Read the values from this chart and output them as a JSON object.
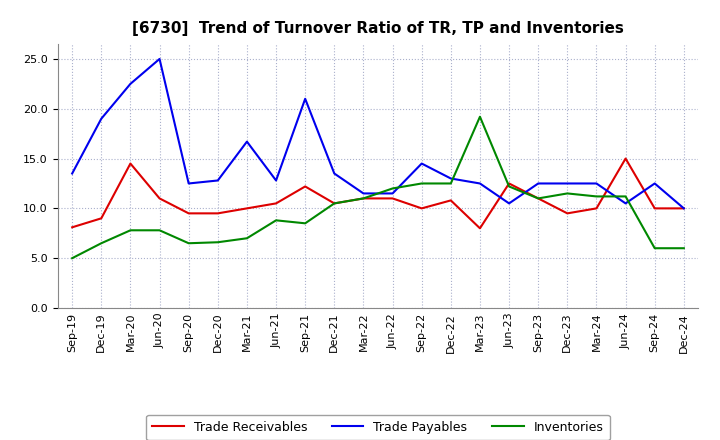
{
  "title": "[6730]  Trend of Turnover Ratio of TR, TP and Inventories",
  "labels": [
    "Sep-19",
    "Dec-19",
    "Mar-20",
    "Jun-20",
    "Sep-20",
    "Dec-20",
    "Mar-21",
    "Jun-21",
    "Sep-21",
    "Dec-21",
    "Mar-22",
    "Jun-22",
    "Sep-22",
    "Dec-22",
    "Mar-23",
    "Jun-23",
    "Sep-23",
    "Dec-23",
    "Mar-24",
    "Jun-24",
    "Sep-24",
    "Dec-24"
  ],
  "trade_receivables": [
    8.1,
    9.0,
    14.5,
    11.0,
    9.5,
    9.5,
    10.0,
    10.5,
    12.2,
    10.5,
    11.0,
    11.0,
    10.0,
    10.8,
    8.0,
    12.5,
    11.0,
    9.5,
    10.0,
    15.0,
    10.0,
    10.0
  ],
  "trade_payables": [
    13.5,
    19.0,
    22.5,
    25.0,
    12.5,
    12.8,
    16.7,
    12.8,
    21.0,
    13.5,
    11.5,
    11.5,
    14.5,
    13.0,
    12.5,
    10.5,
    12.5,
    12.5,
    12.5,
    10.5,
    12.5,
    10.0
  ],
  "inventories": [
    5.0,
    6.5,
    7.8,
    7.8,
    6.5,
    6.6,
    7.0,
    8.8,
    8.5,
    10.5,
    11.0,
    12.0,
    12.5,
    12.5,
    19.2,
    12.2,
    11.0,
    11.5,
    11.2,
    11.2,
    6.0,
    6.0
  ],
  "tr_color": "#dd0000",
  "tp_color": "#0000ee",
  "inv_color": "#008800",
  "ylim": [
    0.0,
    26.5
  ],
  "yticks": [
    0.0,
    5.0,
    10.0,
    15.0,
    20.0,
    25.0
  ],
  "background_color": "#ffffff",
  "plot_bg_color": "#ffffff",
  "grid_color": "#aab0cc",
  "legend_tr": "Trade Receivables",
  "legend_tp": "Trade Payables",
  "legend_inv": "Inventories",
  "title_fontsize": 11,
  "tick_fontsize": 8,
  "legend_fontsize": 9
}
